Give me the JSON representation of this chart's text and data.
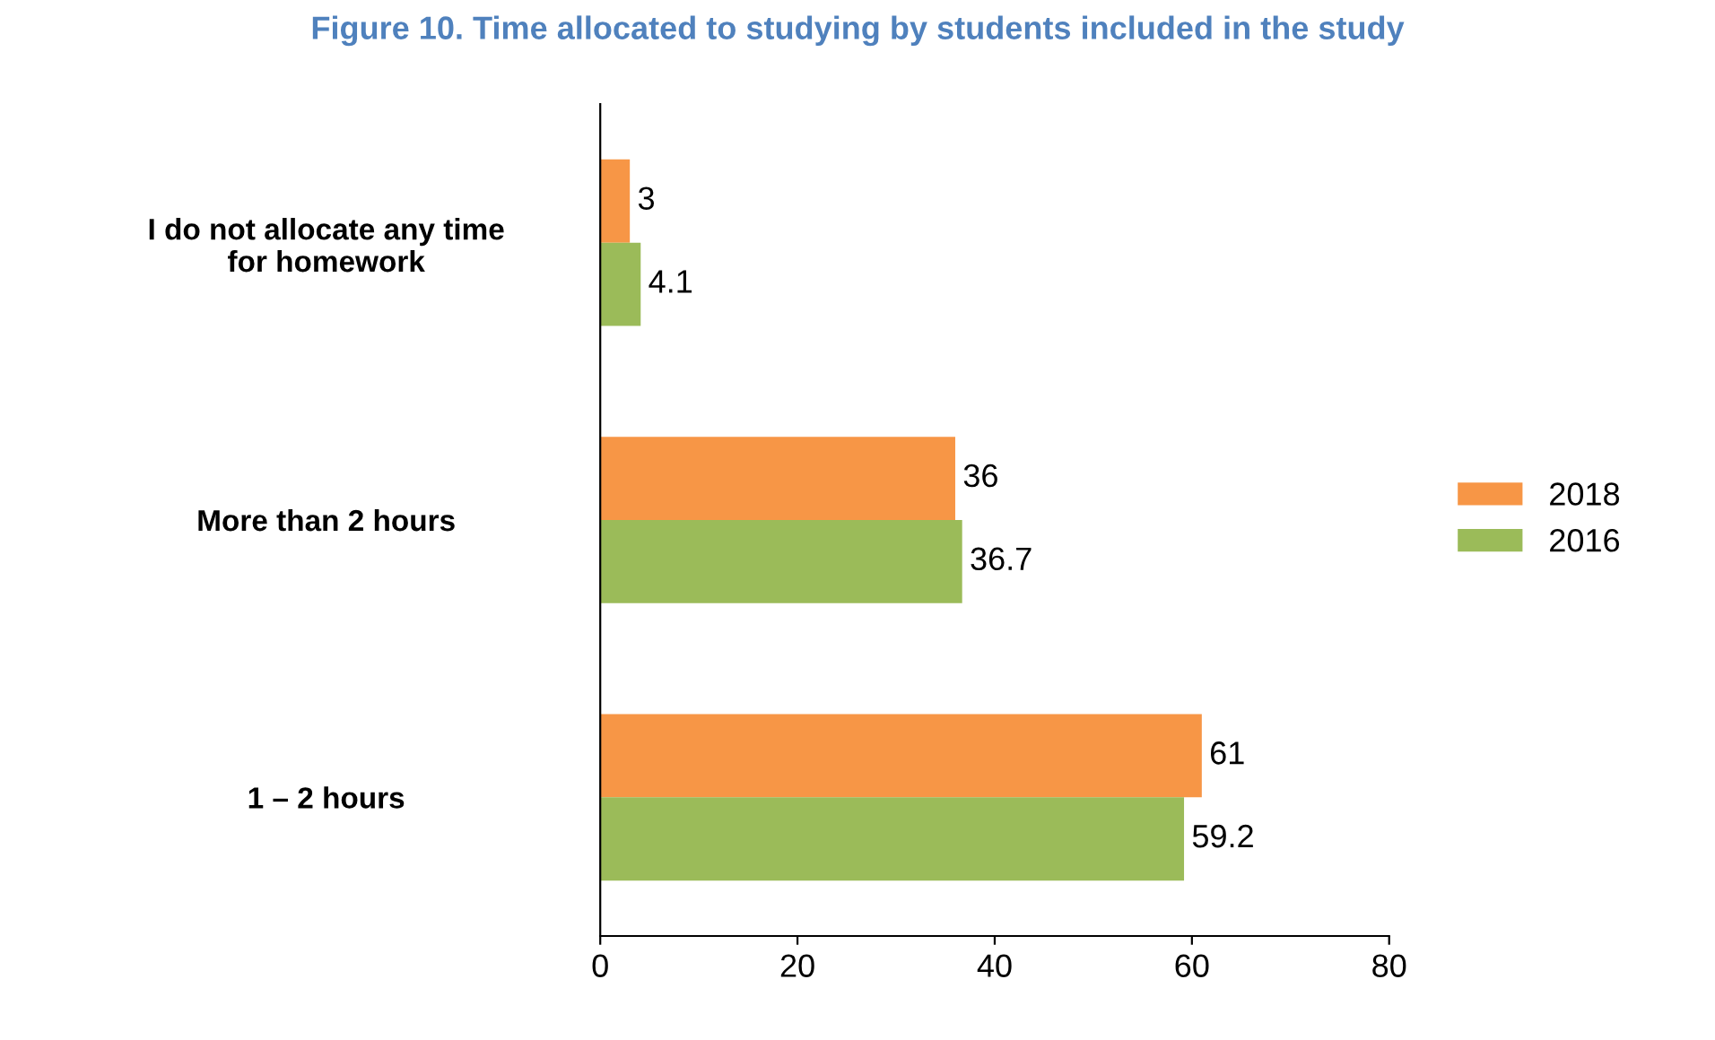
{
  "chart_data": {
    "type": "bar",
    "orientation": "horizontal",
    "title": "Figure 10. Time allocated to studying by students included in the study",
    "categories": [
      "I do not allocate any time\nfor homework",
      "More than 2 hours",
      "1 – 2 hours"
    ],
    "series": [
      {
        "name": "2018",
        "color": "#f79646",
        "values": [
          3,
          36,
          61
        ]
      },
      {
        "name": "2016",
        "color": "#9bbb59",
        "values": [
          4.1,
          36.7,
          59.2
        ]
      }
    ],
    "xlim": [
      0,
      80
    ],
    "xticks": [
      0,
      20,
      40,
      60,
      80
    ],
    "data_labels": true,
    "grid": false,
    "legend": "right"
  }
}
